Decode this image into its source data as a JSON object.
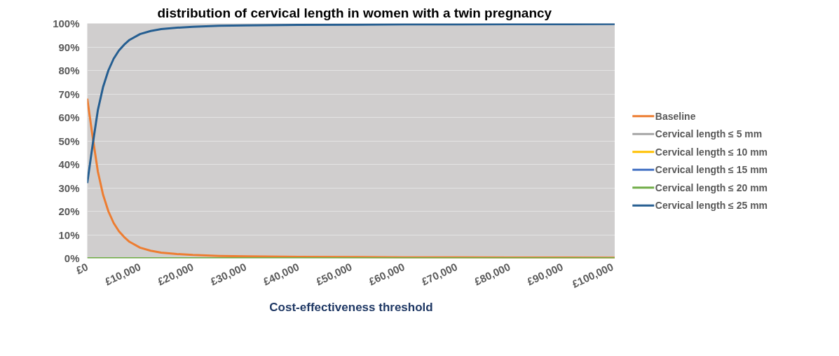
{
  "chart_data": {
    "type": "line",
    "title": "distribution of cervical length in women with a twin pregnancy",
    "xlabel": "Cost-effectiveness threshold",
    "x": [
      0,
      1000,
      2000,
      3000,
      4000,
      5000,
      6000,
      7000,
      8000,
      10000,
      12000,
      14000,
      17000,
      20000,
      25000,
      30000,
      40000,
      50000,
      60000,
      70000,
      80000,
      90000,
      100000
    ],
    "series": [
      {
        "name": "Baseline",
        "color": "#ed7d31",
        "values": [
          68,
          52,
          37,
          27,
          20,
          15,
          11.5,
          9,
          7,
          4.5,
          3.2,
          2.4,
          1.8,
          1.4,
          1,
          0.8,
          0.6,
          0.5,
          0.4,
          0.4,
          0.3,
          0.3,
          0.2
        ]
      },
      {
        "name": "Cervical length ≤ 5 mm",
        "color": "#a5a5a5",
        "values": [
          null,
          null,
          null,
          null,
          null,
          null,
          null,
          null,
          null,
          null,
          null,
          null,
          null,
          null,
          null,
          null,
          null,
          null,
          null,
          null,
          null,
          null,
          null
        ]
      },
      {
        "name": "Cervical length ≤ 10 mm",
        "color": "#ffc000",
        "values": [
          null,
          null,
          null,
          null,
          null,
          null,
          null,
          null,
          null,
          null,
          null,
          null,
          null,
          null,
          null,
          null,
          null,
          null,
          null,
          null,
          null,
          null,
          null
        ]
      },
      {
        "name": "Cervical length ≤ 15 mm",
        "color": "#4472c4",
        "values": [
          null,
          null,
          null,
          null,
          null,
          null,
          null,
          null,
          null,
          null,
          null,
          null,
          null,
          null,
          null,
          null,
          null,
          null,
          null,
          null,
          null,
          null,
          null
        ]
      },
      {
        "name": "Cervical length ≤ 20 mm",
        "color": "#70ad47",
        "values": [
          0,
          0,
          0,
          0,
          0,
          0,
          0,
          0,
          0,
          0,
          0,
          0,
          0,
          0,
          0,
          0,
          0,
          0,
          0,
          0,
          0,
          0,
          0
        ]
      },
      {
        "name": "Cervical length ≤ 25 mm",
        "color": "#255e91",
        "values": [
          32,
          48,
          63,
          73,
          80,
          85,
          88.5,
          91,
          93,
          95.5,
          96.8,
          97.6,
          98.2,
          98.6,
          99,
          99.2,
          99.4,
          99.5,
          99.6,
          99.6,
          99.7,
          99.7,
          99.8
        ]
      }
    ],
    "xlim": [
      0,
      100000
    ],
    "xticks": [
      {
        "value": 0,
        "label": "£0"
      },
      {
        "value": 10000,
        "label": "£10,000"
      },
      {
        "value": 20000,
        "label": "£20,000"
      },
      {
        "value": 30000,
        "label": "£30,000"
      },
      {
        "value": 40000,
        "label": "£40,000"
      },
      {
        "value": 50000,
        "label": "£50,000"
      },
      {
        "value": 60000,
        "label": "£60,000"
      },
      {
        "value": 70000,
        "label": "£70,000"
      },
      {
        "value": 80000,
        "label": "£80,000"
      },
      {
        "value": 90000,
        "label": "£90,000"
      },
      {
        "value": 100000,
        "label": "£100,000"
      }
    ],
    "ylim": [
      0,
      100
    ],
    "yticks": [
      {
        "value": 0,
        "label": "0%"
      },
      {
        "value": 10,
        "label": "10%"
      },
      {
        "value": 20,
        "label": "20%"
      },
      {
        "value": 30,
        "label": "30%"
      },
      {
        "value": 40,
        "label": "40%"
      },
      {
        "value": 50,
        "label": "50%"
      },
      {
        "value": 60,
        "label": "60%"
      },
      {
        "value": 70,
        "label": "70%"
      },
      {
        "value": 80,
        "label": "80%"
      },
      {
        "value": 90,
        "label": "90%"
      },
      {
        "value": 100,
        "label": "100%"
      }
    ],
    "grid": "y",
    "legend": "right",
    "marker": "none",
    "line_style": "solid"
  }
}
